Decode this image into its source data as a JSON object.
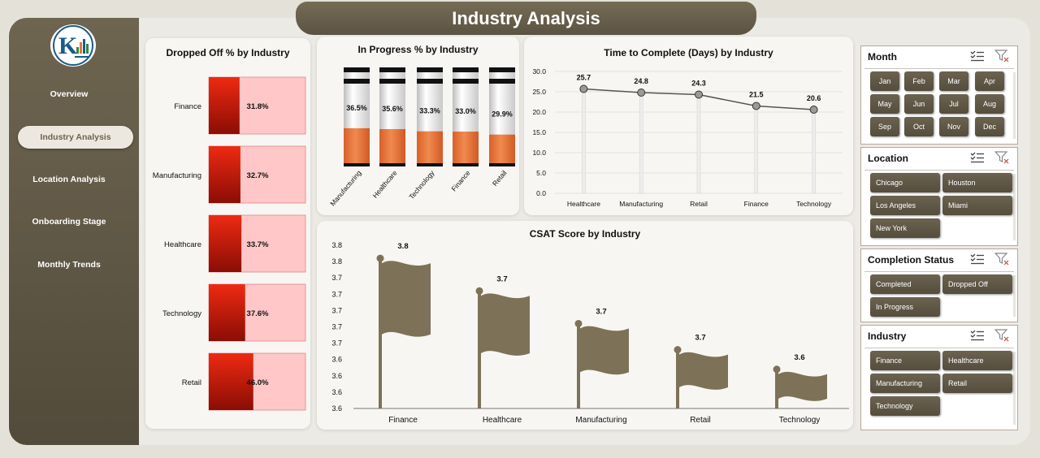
{
  "title": "Industry Analysis",
  "nav": [
    {
      "label": "Overview",
      "active": false
    },
    {
      "label": "Industry Analysis",
      "active": true
    },
    {
      "label": "Location Analysis",
      "active": false
    },
    {
      "label": "Onboarding Stage",
      "active": false
    },
    {
      "label": "Monthly Trends",
      "active": false
    }
  ],
  "colors": {
    "accent": "#6b6250",
    "dropped_fill": "#d61f10",
    "dropped_bg": "#ffc7c7",
    "progress_fill": "#e8743b",
    "flag": "#7d7257"
  },
  "charts": {
    "dropped_off": {
      "title": "Dropped Off % by Industry",
      "chart_data": {
        "type": "bar",
        "categories": [
          "Finance",
          "Manufacturing",
          "Healthcare",
          "Technology",
          "Retail"
        ],
        "values": [
          31.8,
          32.7,
          33.7,
          37.6,
          46.0
        ],
        "labels": [
          "31.8%",
          "32.7%",
          "33.7%",
          "37.6%",
          "46.0%"
        ],
        "max": 100
      }
    },
    "in_progress": {
      "title": "In Progress % by Industry",
      "chart_data": {
        "type": "bar",
        "categories": [
          "Manufacturing",
          "Healthcare",
          "Technology",
          "Finance",
          "Retail"
        ],
        "values": [
          36.5,
          35.6,
          33.3,
          33.0,
          29.9
        ],
        "labels": [
          "36.5%",
          "35.6%",
          "33.3%",
          "33.0%",
          "29.9%"
        ],
        "max": 100
      }
    },
    "time_to_complete": {
      "title": "Time to Complete (Days) by Industry",
      "chart_data": {
        "type": "line",
        "categories": [
          "Healthcare",
          "Manufacturing",
          "Retail",
          "Finance",
          "Technology"
        ],
        "values": [
          25.7,
          24.8,
          24.3,
          21.5,
          20.6
        ],
        "yticks": [
          "0.0",
          "5.0",
          "10.0",
          "15.0",
          "20.0",
          "25.0",
          "30.0"
        ],
        "ylim": [
          0,
          30
        ]
      }
    },
    "csat": {
      "title": "CSAT Score by Industry",
      "chart_data": {
        "type": "bar",
        "categories": [
          "Finance",
          "Healthcare",
          "Manufacturing",
          "Retail",
          "Technology"
        ],
        "values": [
          3.79,
          3.74,
          3.69,
          3.65,
          3.62
        ],
        "labels": [
          "3.8",
          "3.7",
          "3.7",
          "3.7",
          "3.6"
        ],
        "yticks": [
          "3.8",
          "3.8",
          "3.7",
          "3.7",
          "3.7",
          "3.7",
          "3.7",
          "3.6",
          "3.6",
          "3.6",
          "3.6"
        ],
        "ylim": [
          3.56,
          3.81
        ]
      }
    }
  },
  "slicers": [
    {
      "title": "Month",
      "items": [
        "Jan",
        "Feb",
        "Mar",
        "Apr",
        "May",
        "Jun",
        "Jul",
        "Aug",
        "Sep",
        "Oct",
        "Nov",
        "Dec"
      ]
    },
    {
      "title": "Location",
      "items": [
        "Chicago",
        "Houston",
        "Los Angeles",
        "Miami",
        "New York"
      ]
    },
    {
      "title": "Completion Status",
      "items": [
        "Completed",
        "Dropped Off",
        "In Progress"
      ]
    },
    {
      "title": "Industry",
      "items": [
        "Finance",
        "Healthcare",
        "Manufacturing",
        "Retail",
        "Technology"
      ]
    }
  ]
}
